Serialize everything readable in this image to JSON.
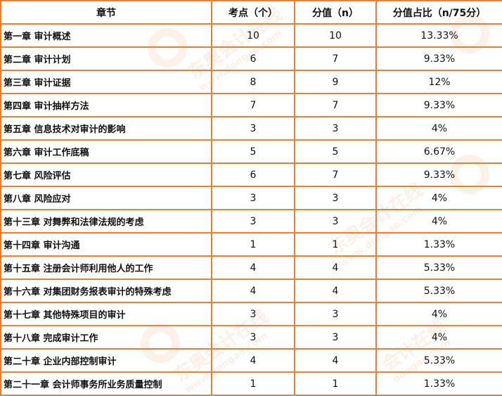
{
  "watermark": {
    "brand": "东奥会计在线",
    "url": "www.dongao.com"
  },
  "table": {
    "headers": [
      "章节",
      "考点（个）",
      "分值（n）",
      "分值占比（n/75分）"
    ],
    "rows": [
      [
        "第一章  审计概述",
        "10",
        "10",
        "13.33%"
      ],
      [
        "第二章  审计计划",
        "6",
        "7",
        "9.33%"
      ],
      [
        "第三章  审计证据",
        "8",
        "9",
        "12%"
      ],
      [
        "第四章  审计抽样方法",
        "7",
        "7",
        "9.33%"
      ],
      [
        "第五章  信息技术对审计的影响",
        "3",
        "3",
        "4%"
      ],
      [
        "第六章  审计工作底稿",
        "5",
        "5",
        "6.67%"
      ],
      [
        "第七章  风险评估",
        "6",
        "7",
        "9.33%"
      ],
      [
        "第八章  风险应对",
        "3",
        "3",
        "4%"
      ],
      [
        "第十三章  对舞弊和法律法规的考虑",
        "3",
        "3",
        "4%"
      ],
      [
        "第十四章  审计沟通",
        "1",
        "1",
        "1.33%"
      ],
      [
        "第十五章  注册会计师利用他人的工作",
        "4",
        "4",
        "5.33%"
      ],
      [
        "第十六章  对集团财务报表审计的特殊考虑",
        "4",
        "4",
        "5.33%"
      ],
      [
        "第十七章  其他特殊项目的审计",
        "3",
        "3",
        "4%"
      ],
      [
        "第十八章  完成审计工作",
        "3",
        "3",
        "4%"
      ],
      [
        "第二十章  企业内部控制审计",
        "4",
        "4",
        "5.33%"
      ],
      [
        "第二十一章  会计师事务所业务质量控制",
        "1",
        "1",
        "1.33%"
      ]
    ]
  }
}
